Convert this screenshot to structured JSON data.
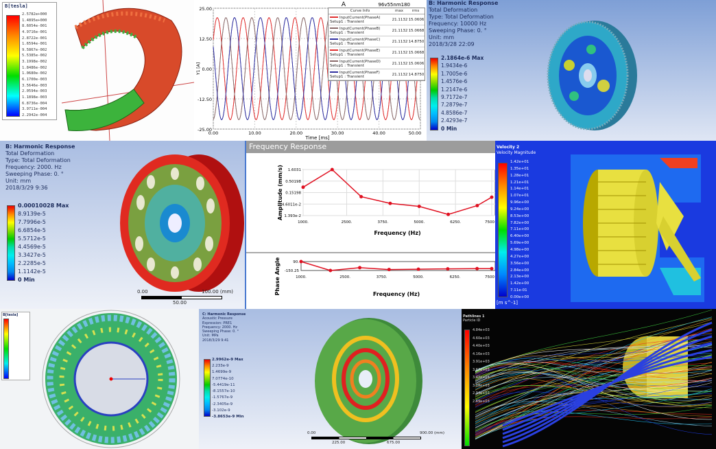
{
  "magnetic_panel": {
    "title": "B[tesla]",
    "values": [
      "2.5782e+000",
      "1.4895e+000",
      "8.6054e-001",
      "4.9716e-001",
      "2.8722e-001",
      "1.6594e-001",
      "9.5867e-002",
      "5.5385e-002",
      "3.1998e-002",
      "1.8486e-002",
      "1.0680e-002",
      "6.1700e-003",
      "3.5646e-003",
      "2.0594e-003",
      "1.1898e-003",
      "6.8736e-004",
      "3.9711e-004",
      "2.2942e-004"
    ]
  },
  "current_chart": {
    "title": "A",
    "project": "96v55nm180",
    "legend_headers": [
      "Curve Info",
      "max",
      "rms"
    ],
    "legend_rows": [
      {
        "name": "InputCurrent(PhaseA)",
        "setup": "Setup1 : Transient",
        "max": "21.1132",
        "rms": "15.0606",
        "color": "#e03030"
      },
      {
        "name": "InputCurrent(PhaseB)",
        "setup": "Setup1 : Transient",
        "max": "21.1132",
        "rms": "15.0668",
        "color": "#8a6a6a"
      },
      {
        "name": "InputCurrent(PhaseC)",
        "setup": "Setup1 : Transient",
        "max": "21.1132",
        "rms": "14.8750",
        "color": "#3030a0"
      },
      {
        "name": "InputCurrent(PhaseE)",
        "setup": "Setup1 : Transient",
        "max": "21.1132",
        "rms": "15.0668",
        "color": "#e03030"
      },
      {
        "name": "InputCurrent(PhaseD)",
        "setup": "Setup1 : Transient",
        "max": "21.1132",
        "rms": "15.0606",
        "color": "#8a6a6a"
      },
      {
        "name": "InputCurrent(PhaseF)",
        "setup": "Setup1 : Transient",
        "max": "21.1132",
        "rms": "14.8750",
        "color": "#3030a0"
      }
    ]
  },
  "harmonic_10000": {
    "lines": [
      "B: Harmonic Response",
      "Total Deformation",
      "Type: Total Deformation",
      "Frequency: 10000 Hz",
      "Sweeping Phase: 0. °",
      "Unit: mm",
      "2018/3/28 22:09"
    ],
    "values": [
      "2.1864e-6 Max",
      "1.9434e-6",
      "1.7005e-6",
      "1.4576e-6",
      "1.2147e-6",
      "9.7172e-7",
      "7.2879e-7",
      "4.8586e-7",
      "2.4293e-7",
      "0 Min"
    ]
  },
  "harmonic_2000": {
    "lines": [
      "B: Harmonic Response",
      "Total Deformation",
      "Type: Total Deformation",
      "Frequency: 2000. Hz",
      "Sweeping Phase: 0. °",
      "Unit: mm",
      "2018/3/29 9:36"
    ],
    "values": [
      "0.00010028 Max",
      "8.9139e-5",
      "7.7996e-5",
      "6.6854e-5",
      "5.5712e-5",
      "4.4569e-5",
      "3.3427e-5",
      "2.2285e-5",
      "1.1142e-5",
      "0 Min"
    ],
    "scale": {
      "start": "0.00",
      "end": "100.00 (mm)",
      "mid": "50.00"
    }
  },
  "frequency_response": {
    "title": "Frequency Response"
  },
  "velocity_panel": {
    "lines": [
      "Velocity 2",
      "Velocity Magnitude"
    ],
    "values": [
      "1.42e+01",
      "1.35e+01",
      "1.28e+01",
      "1.21e+01",
      "1.14e+01",
      "1.07e+01",
      "9.96e+00",
      "9.24e+00",
      "8.53e+00",
      "7.82e+00",
      "7.11e+00",
      "6.40e+00",
      "5.69e+00",
      "4.98e+00",
      "4.27e+00",
      "3.56e+00",
      "2.84e+00",
      "2.13e+00",
      "1.42e+00",
      "7.11e-01",
      "0.00e+00"
    ],
    "unit": "[m s^-1]"
  },
  "ring_panel": {
    "title": "B[tesla]"
  },
  "acoustic_panel": {
    "lines": [
      "C: Harmonic Response",
      "Acoustic Pressure",
      "Expression: PRE1",
      "Frequency: 2000. Hz",
      "Sweeping Phase: 0. °",
      "Unit: MPa",
      "2018/3/29 9:41"
    ],
    "values": [
      "2.9962e-9 Max",
      "2.233e-9",
      "1.4699e-9",
      "7.0774e-10",
      "-5.4419e-11",
      "-8.1557e-10",
      "-1.5767e-9",
      "-2.3405e-9",
      "-3.102e-9",
      "-3.8653e-9 Min"
    ],
    "scale": {
      "start": "0.00",
      "end": "900.00 (mm)",
      "a": "225.00",
      "b": "675.00"
    }
  },
  "pathline_panel": {
    "lines": [
      "Pathlines 1",
      "Particle ID"
    ],
    "values": [
      "4.84e+03",
      "4.60e+03",
      "4.40e+03",
      "4.16e+03",
      "3.91e+03",
      "3.67e+03",
      "3.42e+03",
      "3.18e+03",
      "2.94e+03",
      "2.69e+03"
    ]
  },
  "chart_data": [
    {
      "type": "line",
      "title": "A",
      "xlabel": "Time [ms]",
      "ylabel": "Y1 [A]",
      "xlim": [
        0,
        50
      ],
      "ylim": [
        -25,
        25
      ],
      "xticks": [
        "0.00",
        "10.00",
        "20.00",
        "30.00",
        "40.00",
        "50.00"
      ],
      "yticks": [
        "25.00",
        "12.50",
        "0.00",
        "-12.50",
        "-25.00"
      ],
      "grid": true,
      "legend": "top-right",
      "waveform": "sine",
      "amplitude": 21.1132,
      "period_ms": 6.25,
      "series": [
        {
          "name": "InputCurrent(PhaseA)",
          "phase_deg": 0
        },
        {
          "name": "InputCurrent(PhaseB)",
          "phase_deg": -120
        },
        {
          "name": "InputCurrent(PhaseC)",
          "phase_deg": -240
        },
        {
          "name": "InputCurrent(PhaseE)",
          "phase_deg": 0
        },
        {
          "name": "InputCurrent(PhaseD)",
          "phase_deg": -120
        },
        {
          "name": "InputCurrent(PhaseF)",
          "phase_deg": -240
        }
      ]
    },
    {
      "type": "line",
      "xlabel": "Frequency (Hz)",
      "ylabel": "Amplitude (mm/s)",
      "yscale": "log",
      "xlim": [
        1000,
        7500
      ],
      "xticks": [
        "1000.",
        "2500.",
        "3750.",
        "5000.",
        "6250.",
        "7500"
      ],
      "yticks": [
        "1.6031",
        "0.50198",
        "0.15198",
        "4.6011e-2",
        "1.393e-2"
      ],
      "grid": true,
      "x": [
        1000,
        2000,
        3000,
        4000,
        5000,
        6000,
        7000,
        7500
      ],
      "values": [
        0.26,
        1.6031,
        0.098,
        0.049,
        0.036,
        0.0157,
        0.039,
        0.093
      ],
      "color": "#e01020"
    },
    {
      "type": "line",
      "xlabel": "Frequency (Hz)",
      "ylabel": "Phase Angle",
      "xlim": [
        1000,
        7500
      ],
      "ylim": [
        -150.25,
        90
      ],
      "xticks": [
        "1000.",
        "2500.",
        "3750.",
        "5000.",
        "6250.",
        "7500"
      ],
      "yticks": [
        "90.",
        "-150.25"
      ],
      "x": [
        1000,
        2000,
        3000,
        4000,
        5000,
        6000,
        7000,
        7500
      ],
      "values": [
        90,
        -150,
        -74,
        -124,
        -115,
        -106,
        -100,
        -100
      ],
      "color": "#e01020"
    }
  ]
}
